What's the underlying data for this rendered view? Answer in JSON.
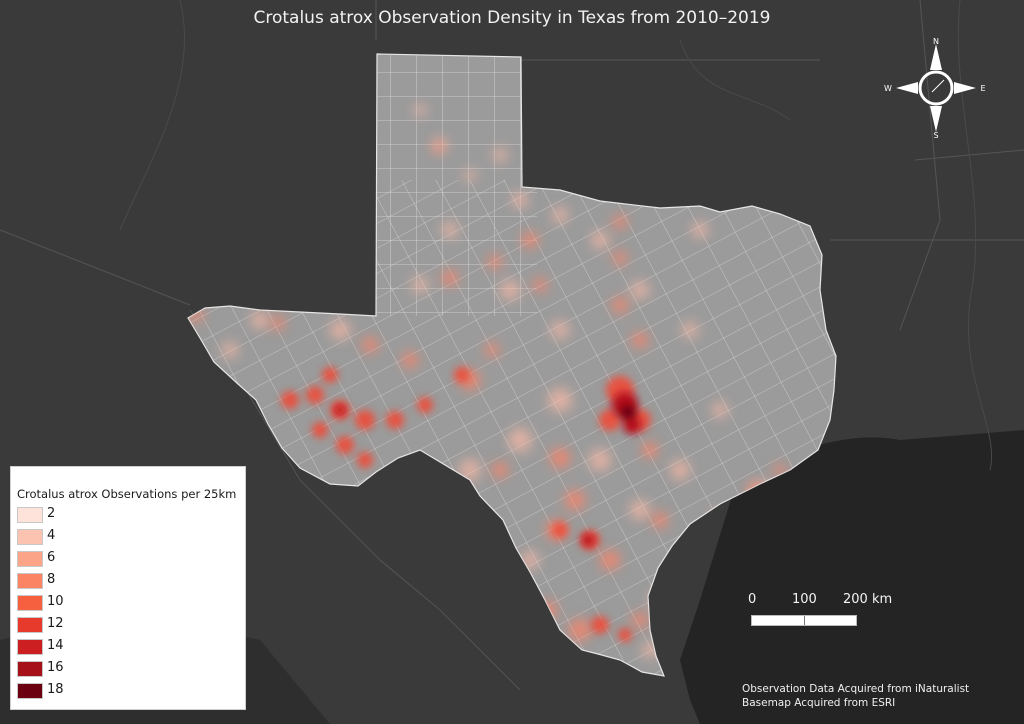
{
  "title": "Crotalus atrox Observation Density in Texas from 2010–2019",
  "legend": {
    "title": "Crotalus atrox Observations per 25km",
    "items": [
      {
        "label": "2",
        "color": "#fde3da"
      },
      {
        "label": "4",
        "color": "#fcc4b0"
      },
      {
        "label": "6",
        "color": "#fca487"
      },
      {
        "label": "8",
        "color": "#fb8464"
      },
      {
        "label": "10",
        "color": "#f6603f"
      },
      {
        "label": "12",
        "color": "#e83a2c"
      },
      {
        "label": "14",
        "color": "#cc1f22"
      },
      {
        "label": "16",
        "color": "#a61018"
      },
      {
        "label": "18",
        "color": "#6b0010"
      }
    ]
  },
  "compass": {
    "n": "N",
    "s": "S",
    "e": "E",
    "w": "W"
  },
  "scale_bar": {
    "labels": [
      "0",
      "100",
      "200 km"
    ]
  },
  "credits": [
    "Observation Data Acquired from iNaturalist",
    "Basemap Acquired from ESRI"
  ],
  "colors": {
    "land": "#393939",
    "water": "#232323",
    "texas_fill": "#9b9b9b",
    "county_lines": "#d8d8d8",
    "heat_low": "#f8b4a0",
    "heat_high": "#d3001b"
  }
}
